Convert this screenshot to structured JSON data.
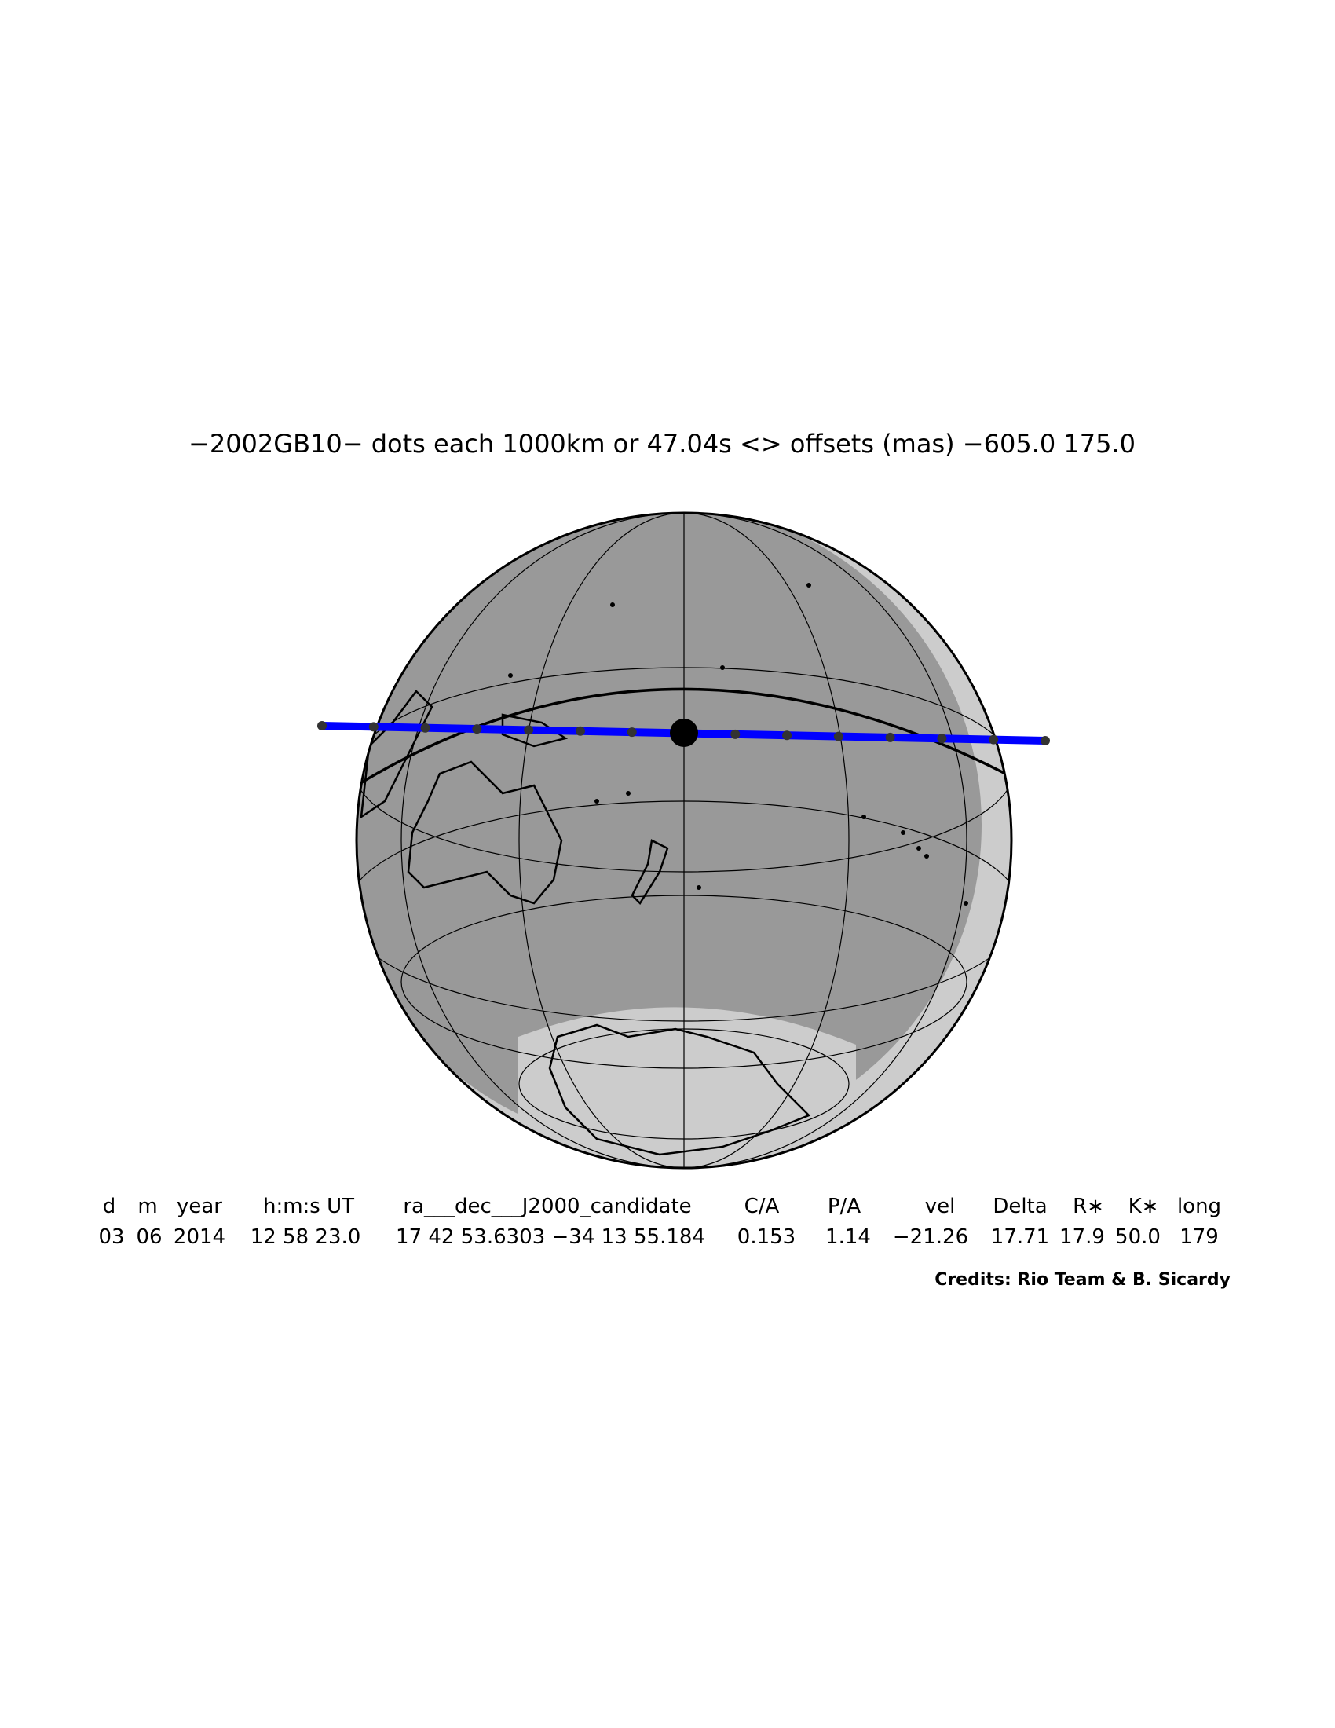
{
  "header": {
    "title": "−2002GB10−  dots each 1000km or 47.04s <> offsets (mas) −605.0   175.0"
  },
  "table": {
    "columns": [
      "d",
      "m",
      "year",
      "h:m:s UT",
      "ra___dec___J2000_candidate",
      "C/A",
      "P/A",
      "vel",
      "Delta",
      "R∗",
      "K∗",
      "long"
    ],
    "row": [
      "03",
      "06",
      "2014",
      "12 58 23.0",
      "17 42 53.6303 −34 13 55.184",
      "0.153",
      "1.14",
      "−21.26",
      "17.71",
      "17.9",
      "50.0",
      "179"
    ]
  },
  "credits": "Credits: Rio Team & B. Sicardy"
}
